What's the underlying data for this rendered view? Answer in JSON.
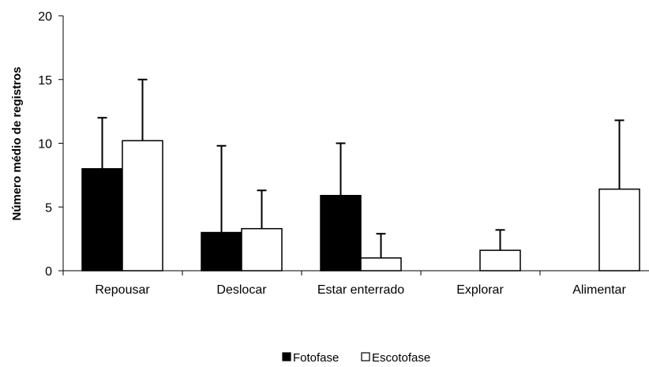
{
  "chart_data": {
    "type": "bar",
    "categories": [
      "Repousar",
      "Deslocar",
      "Estar enterrado",
      "Explorar",
      "Alimentar"
    ],
    "series": [
      {
        "name": "Fotofase",
        "color": "#000000",
        "values": [
          8.0,
          3.0,
          5.9,
          0,
          0
        ],
        "error_upper": [
          12.0,
          9.8,
          10.0,
          null,
          null
        ]
      },
      {
        "name": "Escotofase",
        "color": "#ffffff",
        "values": [
          10.2,
          3.3,
          1.0,
          1.6,
          6.4
        ],
        "error_upper": [
          15.0,
          6.3,
          2.9,
          3.2,
          11.8
        ]
      }
    ],
    "ylabel": "Número médio de registros",
    "xlabel": "",
    "ylim": [
      0,
      20
    ],
    "yticks": [
      "0",
      "5",
      "10",
      "15",
      "20"
    ],
    "grid": false,
    "legend_position": "bottom-center"
  }
}
